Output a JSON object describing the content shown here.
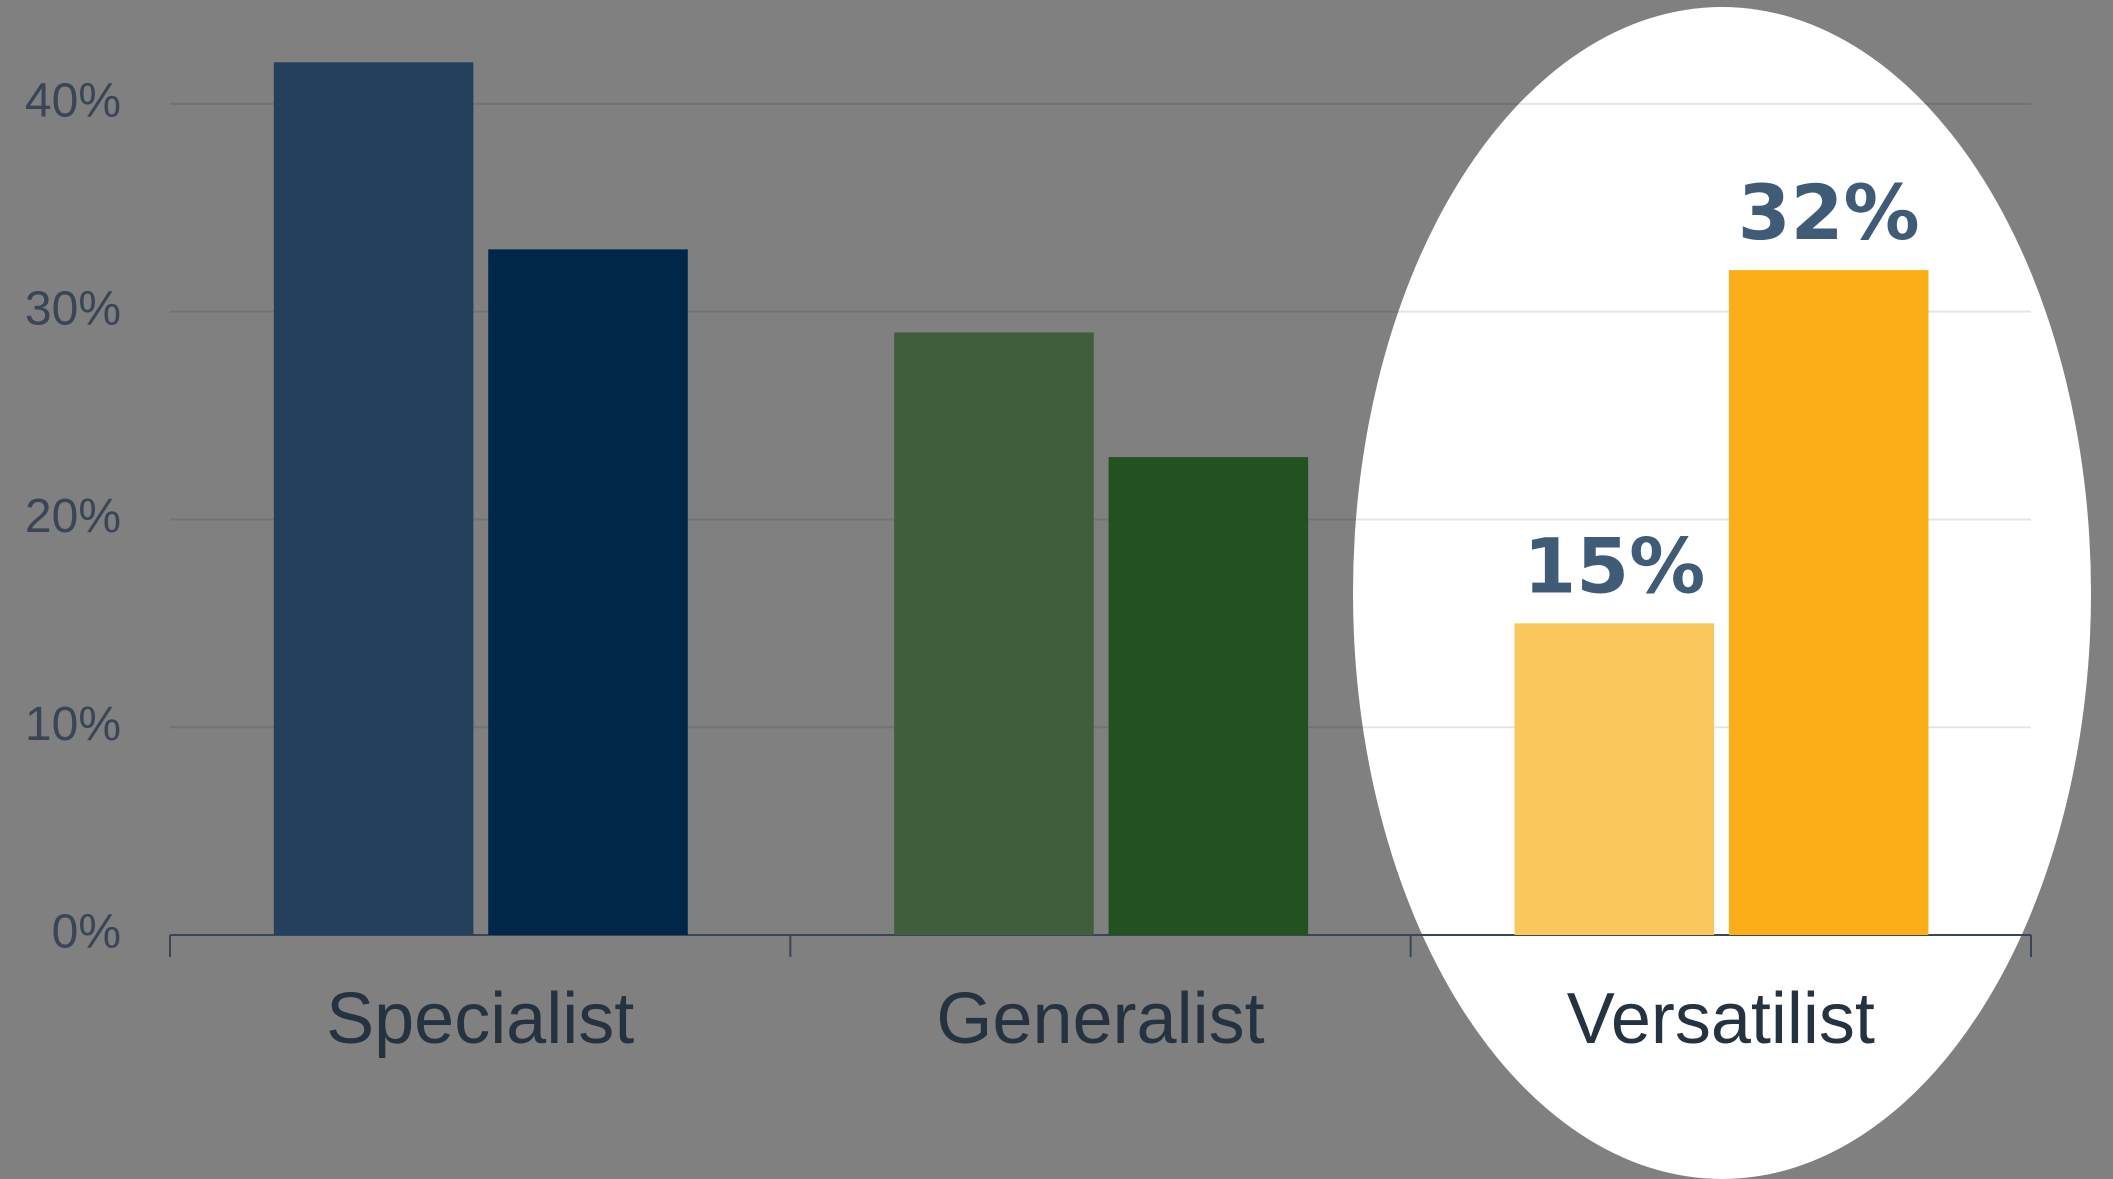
{
  "chart_data": {
    "type": "bar",
    "categories": [
      "Specialist",
      "Generalist",
      "Versatilist"
    ],
    "series": [
      {
        "values": [
          42,
          29,
          15
        ],
        "colors": [
          "#24405c",
          "#405e3c",
          "#fac75d"
        ],
        "value_labels": [
          null,
          null,
          "15%"
        ]
      },
      {
        "values": [
          33,
          23,
          32
        ],
        "colors": [
          "#00274a",
          "#23511f",
          "#fbae17"
        ],
        "value_labels": [
          null,
          null,
          "32%"
        ]
      }
    ],
    "ylim": [
      0,
      45
    ],
    "yticks": [
      {
        "value": 0,
        "label": "0%"
      },
      {
        "value": 10,
        "label": "10%"
      },
      {
        "value": 20,
        "label": "20%"
      },
      {
        "value": 30,
        "label": "30%"
      },
      {
        "value": 40,
        "label": "40%"
      }
    ],
    "grid": true,
    "highlight_category": 2
  }
}
